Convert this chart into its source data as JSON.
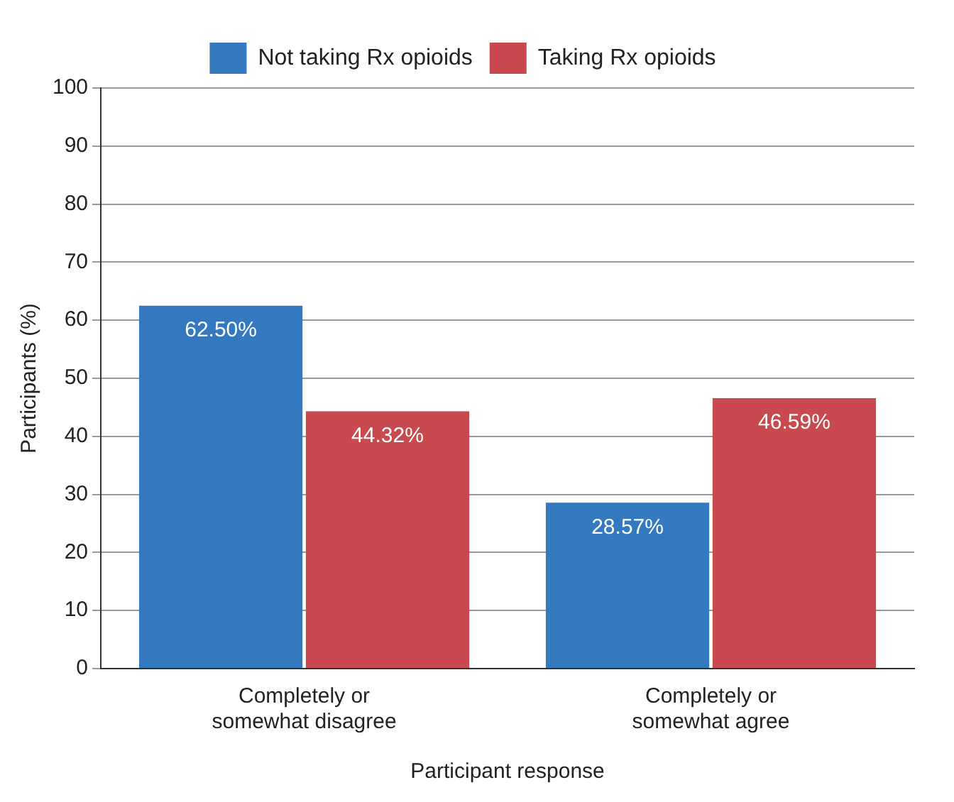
{
  "chart_data": {
    "type": "bar",
    "xlabel": "Participant response",
    "ylabel": "Participants (%)",
    "categories": [
      "Completely or\nsomewhat disagree",
      "Completely or\nsomewhat agree"
    ],
    "series": [
      {
        "name": "Not taking Rx opioids",
        "color": "#3479c0",
        "values": [
          62.5,
          28.57
        ],
        "value_labels": [
          "62.50%",
          "28.57%"
        ]
      },
      {
        "name": "Taking Rx opioids",
        "color": "#c84a4e",
        "values": [
          44.32,
          46.59
        ],
        "value_labels": [
          "44.32%",
          "46.59%"
        ]
      }
    ],
    "ylim": [
      0,
      100
    ],
    "yticks": [
      0,
      10,
      20,
      30,
      40,
      50,
      60,
      70,
      80,
      90,
      100
    ],
    "grid": "y",
    "legend": "top"
  }
}
